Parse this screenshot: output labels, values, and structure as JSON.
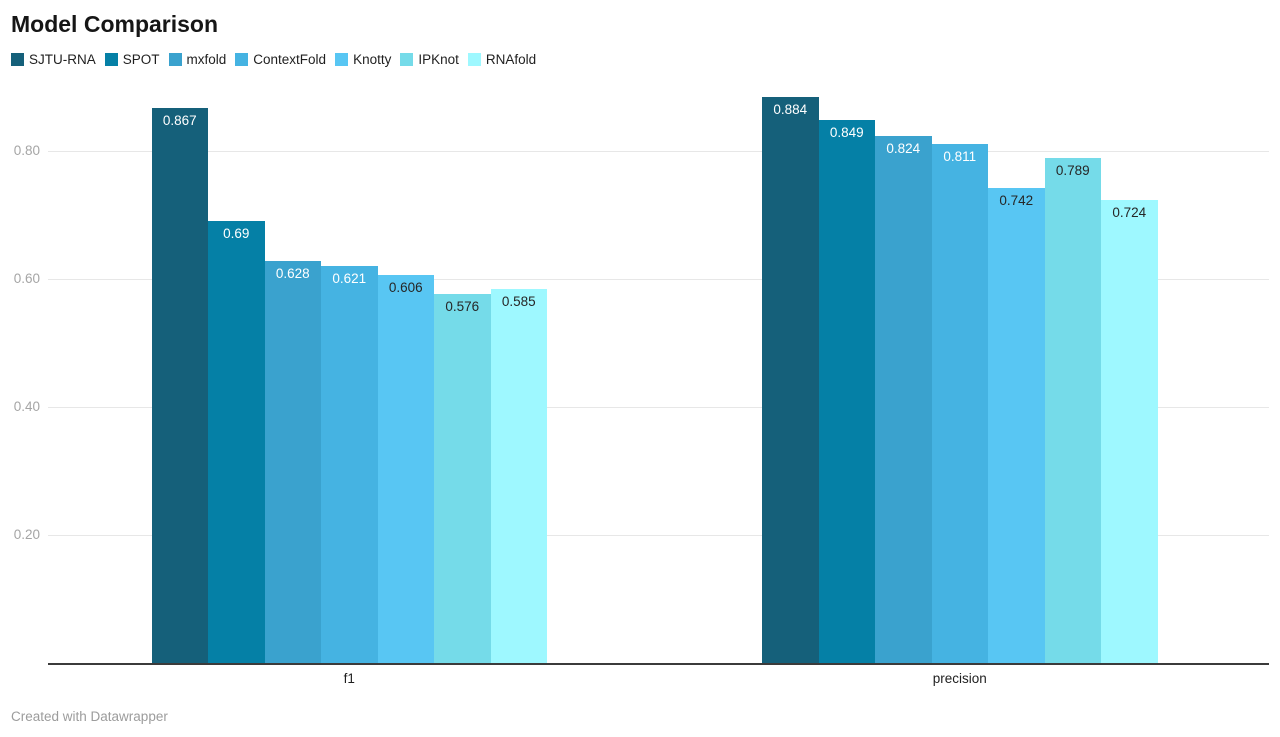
{
  "title": "Model Comparison",
  "footer": "Created with Datawrapper",
  "chart_data": {
    "type": "bar",
    "title": "Model Comparison",
    "xlabel": "",
    "ylabel": "",
    "categories": [
      "f1",
      "precision"
    ],
    "series": [
      {
        "name": "SJTU-RNA",
        "color": "#15607a",
        "label_color": "#ffffff",
        "values": [
          0.867,
          0.884
        ],
        "labels": [
          "0.867",
          "0.884"
        ]
      },
      {
        "name": "SPOT",
        "color": "#0580a6",
        "label_color": "#ffffff",
        "values": [
          0.69,
          0.849
        ],
        "labels": [
          "0.69",
          "0.849"
        ]
      },
      {
        "name": "mxfold",
        "color": "#3aa2ce",
        "label_color": "#ffffff",
        "values": [
          0.628,
          0.824
        ],
        "labels": [
          "0.628",
          "0.824"
        ]
      },
      {
        "name": "ContextFold",
        "color": "#45b3e2",
        "label_color": "#ffffff",
        "values": [
          0.621,
          0.811
        ],
        "labels": [
          "0.621",
          "0.811"
        ]
      },
      {
        "name": "Knotty",
        "color": "#58c6f3",
        "label_color": "#262626",
        "values": [
          0.606,
          0.742
        ],
        "labels": [
          "0.606",
          "0.742"
        ]
      },
      {
        "name": "IPKnot",
        "color": "#75dbe9",
        "label_color": "#262626",
        "values": [
          0.576,
          0.789
        ],
        "labels": [
          "0.576",
          "0.789"
        ]
      },
      {
        "name": "RNAfold",
        "color": "#9ef8ff",
        "label_color": "#262626",
        "values": [
          0.585,
          0.724
        ],
        "labels": [
          "0.585",
          "0.724"
        ]
      }
    ],
    "yticks": [
      {
        "label": "0.20",
        "value": 0.2
      },
      {
        "label": "0.40",
        "value": 0.4
      },
      {
        "label": "0.60",
        "value": 0.6
      },
      {
        "label": "0.80",
        "value": 0.8
      }
    ],
    "ylim": [
      0,
      0.9
    ],
    "grid": "horizontal",
    "legend_position": "top",
    "value_labels": "inside-top"
  }
}
